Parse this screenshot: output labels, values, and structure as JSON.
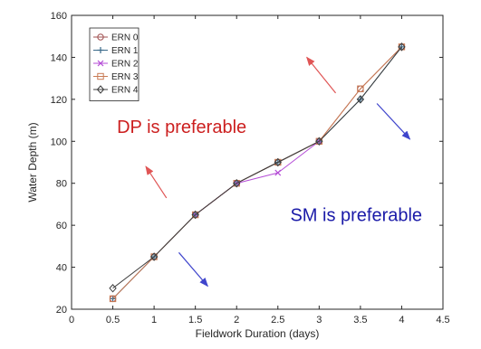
{
  "chart_data": {
    "type": "line",
    "title": "",
    "xlabel": "Fieldwork Duration (days)",
    "ylabel": "Water Depth (m)",
    "xlim": [
      0,
      4.5
    ],
    "ylim": [
      20,
      160
    ],
    "xticks": [
      0,
      0.5,
      1,
      1.5,
      2,
      2.5,
      3,
      3.5,
      4,
      4.5
    ],
    "yticks": [
      20,
      40,
      60,
      80,
      100,
      120,
      140,
      160
    ],
    "x_tick_labels": [
      "0",
      "0.5",
      "1",
      "1.5",
      "2",
      "2.5",
      "3",
      "3.5",
      "4",
      "4.5"
    ],
    "y_tick_labels": [
      "20",
      "40",
      "60",
      "80",
      "100",
      "120",
      "140",
      "160"
    ],
    "grid": false,
    "legend_position": "top-left",
    "series": [
      {
        "name": "ERN 0",
        "marker": "circle",
        "color": "#a05050",
        "points": [
          [
            0.5,
            25
          ],
          [
            1,
            45
          ],
          [
            1.5,
            65
          ],
          [
            2,
            80
          ],
          [
            2.5,
            90
          ],
          [
            3,
            100
          ],
          [
            3.5,
            125
          ],
          [
            4,
            145
          ]
        ]
      },
      {
        "name": "ERN 1",
        "marker": "plus",
        "color": "#3a6a8a",
        "points": [
          [
            0.5,
            25
          ],
          [
            1,
            45
          ],
          [
            1.5,
            65
          ],
          [
            2,
            80
          ],
          [
            2.5,
            90
          ],
          [
            3,
            100
          ],
          [
            3.5,
            120
          ],
          [
            4,
            145
          ]
        ]
      },
      {
        "name": "ERN 2",
        "marker": "x",
        "color": "#b44bd6",
        "points": [
          [
            1.5,
            65
          ],
          [
            2,
            80
          ],
          [
            2.5,
            85
          ],
          [
            3,
            100
          ]
        ]
      },
      {
        "name": "ERN 3",
        "marker": "square",
        "color": "#c97b54",
        "points": [
          [
            0.5,
            25
          ],
          [
            1,
            45
          ],
          [
            1.5,
            65
          ],
          [
            2,
            80
          ],
          [
            2.5,
            90
          ],
          [
            3,
            100
          ],
          [
            3.5,
            125
          ],
          [
            4,
            145
          ]
        ]
      },
      {
        "name": "ERN 4",
        "marker": "diamond",
        "color": "#3c3c3c",
        "points": [
          [
            0.5,
            30
          ],
          [
            1,
            45
          ],
          [
            1.5,
            65
          ],
          [
            2,
            80
          ],
          [
            2.5,
            90
          ],
          [
            3,
            100
          ],
          [
            3.5,
            120
          ],
          [
            4,
            145
          ]
        ]
      }
    ],
    "annotations": [
      {
        "text": "DP is preferable",
        "x": 0.55,
        "y": 104,
        "color": "#cc1f1f"
      },
      {
        "text": "SM is preferable",
        "x": 2.65,
        "y": 62,
        "color": "#1a1aa8"
      }
    ],
    "arrows": [
      {
        "from": [
          1.15,
          73
        ],
        "to": [
          0.9,
          88
        ],
        "color": "#e05555"
      },
      {
        "from": [
          3.2,
          123
        ],
        "to": [
          2.85,
          140
        ],
        "color": "#e05555"
      },
      {
        "from": [
          3.7,
          118
        ],
        "to": [
          4.1,
          101
        ],
        "color": "#3f45cc"
      },
      {
        "from": [
          1.3,
          47
        ],
        "to": [
          1.65,
          31
        ],
        "color": "#3f45cc"
      }
    ]
  }
}
